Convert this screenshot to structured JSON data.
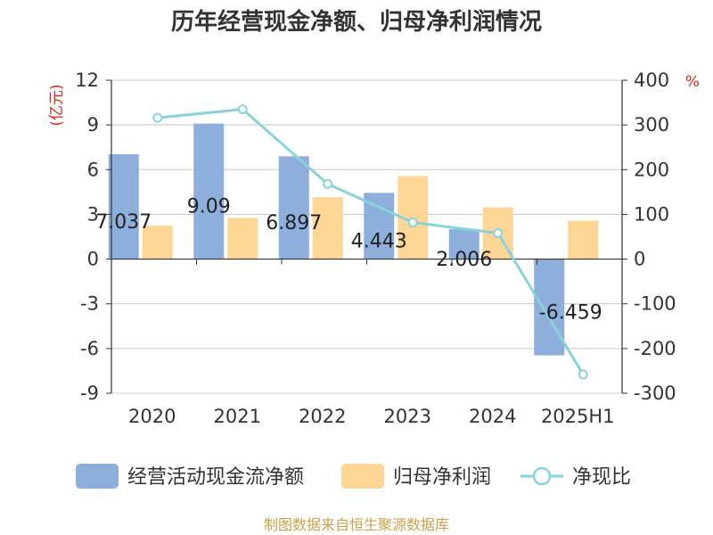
{
  "title": "历年经营现金净额、归母净利润情况",
  "source_note": "制图数据来自恒生聚源数据库",
  "colors": {
    "bar_cash": "#8eaedb",
    "bar_profit": "#fdd696",
    "line_ratio": "#86d3da",
    "axis": "#333333",
    "grid": "#c8c8c8"
  },
  "chart_data": {
    "type": "bar",
    "categories": [
      "2020",
      "2021",
      "2022",
      "2023",
      "2024",
      "2025H1"
    ],
    "y_left": {
      "unit": "(亿元)",
      "range": [
        -9,
        12
      ],
      "ticks": [
        12,
        9,
        6,
        3,
        0,
        -3,
        -6,
        -9
      ]
    },
    "y_right": {
      "unit": "%",
      "range": [
        -300,
        400
      ],
      "ticks": [
        400,
        300,
        200,
        100,
        0,
        -100,
        -200,
        -300
      ]
    },
    "series": [
      {
        "name": "经营活动现金流净额",
        "type": "bar",
        "axis": "left",
        "values": [
          7.037,
          9.09,
          6.897,
          4.443,
          2.006,
          -6.459
        ],
        "labels": [
          "7.037",
          "9.09",
          "6.897",
          "4.443",
          "2.006",
          "-6.459"
        ]
      },
      {
        "name": "归母净利润",
        "type": "bar",
        "axis": "left",
        "values": [
          2.24,
          2.76,
          4.15,
          5.57,
          3.47,
          2.58
        ]
      },
      {
        "name": "净现比",
        "type": "line",
        "axis": "right",
        "values": [
          316,
          335,
          168,
          82,
          58,
          -258
        ]
      }
    ],
    "grid": true,
    "legend_position": "bottom"
  }
}
